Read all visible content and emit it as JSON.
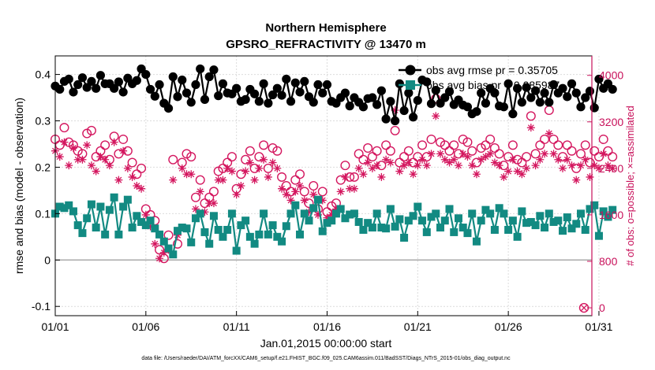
{
  "chart_data": {
    "type": "line",
    "title": "Northern Hemisphere",
    "subtitle": "GPSRO_REFRACTIVITY @ 13470 m",
    "xlabel": "Jan.01,2015 00:00:00 start",
    "ylabel": "rmse and bias (model - observation)",
    "ylabel_right": "# of obs: o=possible; ×=assimilated",
    "ylim": [
      -0.12,
      0.44
    ],
    "ylim_right": [
      -135,
      4335
    ],
    "xlim": [
      0,
      31.7
    ],
    "yticks": [
      "0.4",
      "0.3",
      "0.2",
      "0.1",
      "0",
      "-0.1"
    ],
    "yticks_values": [
      0.4,
      0.3,
      0.2,
      0.1,
      0,
      -0.1
    ],
    "yticks_right": [
      "4000",
      "3200",
      "2400",
      "1600",
      "800",
      "0"
    ],
    "yticks_right_values": [
      4000,
      3200,
      2400,
      1600,
      800,
      0
    ],
    "xticks": [
      "01/01",
      "01/06",
      "01/11",
      "01/16",
      "01/21",
      "01/26",
      "01/31"
    ],
    "xticks_values": [
      0,
      5,
      10,
      15,
      20,
      25,
      30
    ],
    "zero_line": 0,
    "legend_position": "top-right",
    "legend": [
      "obs avg rmse pr = 0.35705",
      "obs avg bias pr = 0.085987"
    ],
    "footnote": "data file: /Users/raeder/DAI/ATM_forcXX/CAM6_setup/f.e21.FHIST_BGC.f09_025.CAM6assim.011/BadSST/Diags_NTrS_2015-01/obs_diag_output.nc",
    "rmse_series": {
      "name": "obs avg rmse pr = 0.35705",
      "color": "#000000",
      "x": [
        0,
        0.25,
        0.5,
        0.75,
        1,
        1.25,
        1.5,
        1.75,
        2,
        2.25,
        2.5,
        2.75,
        3,
        3.25,
        3.5,
        3.75,
        4,
        4.25,
        4.5,
        4.75,
        5,
        5.25,
        5.5,
        5.75,
        6,
        6.25,
        6.5,
        6.75,
        7,
        7.25,
        7.5,
        7.75,
        8,
        8.25,
        8.5,
        8.75,
        9,
        9.25,
        9.5,
        9.75,
        10,
        10.25,
        10.5,
        10.75,
        11,
        11.25,
        11.5,
        11.75,
        12,
        12.25,
        12.5,
        12.75,
        13,
        13.25,
        13.5,
        13.75,
        14,
        14.25,
        14.5,
        14.75,
        15,
        15.25,
        15.5,
        15.75,
        16,
        16.25,
        16.5,
        16.75,
        17,
        17.25,
        17.5,
        17.75,
        18,
        18.25,
        18.5,
        18.75,
        19,
        19.25,
        19.5,
        19.75,
        20,
        20.25,
        20.5,
        20.75,
        21,
        21.25,
        21.5,
        21.75,
        22,
        22.25,
        22.5,
        22.75,
        23,
        23.25,
        23.5,
        23.75,
        24,
        24.25,
        24.5,
        24.75,
        25,
        25.25,
        25.5,
        25.75,
        26,
        26.25,
        26.5,
        26.75,
        27,
        27.25,
        27.5,
        27.75,
        28,
        28.25,
        28.5,
        28.75,
        29,
        29.25,
        29.5,
        29.75,
        30,
        30.25,
        30.5,
        30.75
      ],
      "values": [
        0.375,
        0.368,
        0.385,
        0.39,
        0.362,
        0.378,
        0.393,
        0.372,
        0.385,
        0.37,
        0.398,
        0.38,
        0.38,
        0.37,
        0.384,
        0.362,
        0.392,
        0.38,
        0.387,
        0.412,
        0.4,
        0.368,
        0.353,
        0.378,
        0.338,
        0.327,
        0.395,
        0.352,
        0.388,
        0.36,
        0.34,
        0.378,
        0.412,
        0.346,
        0.395,
        0.41,
        0.354,
        0.38,
        0.36,
        0.358,
        0.37,
        0.342,
        0.346,
        0.368,
        0.358,
        0.342,
        0.38,
        0.338,
        0.356,
        0.37,
        0.355,
        0.39,
        0.342,
        0.382,
        0.362,
        0.385,
        0.352,
        0.34,
        0.378,
        0.36,
        0.378,
        0.342,
        0.338,
        0.35,
        0.36,
        0.332,
        0.35,
        0.34,
        0.33,
        0.348,
        0.35,
        0.335,
        0.365,
        0.304,
        0.342,
        0.3,
        0.38,
        0.322,
        0.36,
        0.308,
        0.344,
        0.388,
        0.384,
        0.337,
        0.366,
        0.338,
        0.35,
        0.363,
        0.335,
        0.345,
        0.334,
        0.33,
        0.315,
        0.32,
        0.36,
        0.338,
        0.37,
        0.36,
        0.332,
        0.33,
        0.38,
        0.315,
        0.37,
        0.34,
        0.372,
        0.35,
        0.365,
        0.34,
        0.36,
        0.34,
        0.378,
        0.36,
        0.37,
        0.352,
        0.38,
        0.36,
        0.33,
        0.35,
        0.364,
        0.328,
        0.39,
        0.37,
        0.38,
        0.368
      ]
    },
    "bias_series": {
      "name": "obs avg bias pr = 0.085987",
      "color": "#128a82",
      "x": [
        0,
        0.25,
        0.5,
        0.75,
        1,
        1.25,
        1.5,
        1.75,
        2,
        2.25,
        2.5,
        2.75,
        3,
        3.25,
        3.5,
        3.75,
        4,
        4.25,
        4.5,
        4.75,
        5,
        5.25,
        5.5,
        5.75,
        6,
        6.25,
        6.5,
        6.75,
        7,
        7.25,
        7.5,
        7.75,
        8,
        8.25,
        8.5,
        8.75,
        9,
        9.25,
        9.5,
        9.75,
        10,
        10.25,
        10.5,
        10.75,
        11,
        11.25,
        11.5,
        11.75,
        12,
        12.25,
        12.5,
        12.75,
        13,
        13.25,
        13.5,
        13.75,
        14,
        14.25,
        14.5,
        14.75,
        15,
        15.25,
        15.5,
        15.75,
        16,
        16.25,
        16.5,
        16.75,
        17,
        17.25,
        17.5,
        17.75,
        18,
        18.25,
        18.5,
        18.75,
        19,
        19.25,
        19.5,
        19.75,
        20,
        20.25,
        20.5,
        20.75,
        21,
        21.25,
        21.5,
        21.75,
        22,
        22.25,
        22.5,
        22.75,
        23,
        23.25,
        23.5,
        23.75,
        24,
        24.25,
        24.5,
        24.75,
        25,
        25.25,
        25.5,
        25.75,
        26,
        26.25,
        26.5,
        26.75,
        27,
        27.25,
        27.5,
        27.75,
        28,
        28.25,
        28.5,
        28.75,
        29,
        29.25,
        29.5,
        29.75,
        30,
        30.25,
        30.5,
        30.75
      ],
      "values": [
        0.1,
        0.115,
        0.112,
        0.118,
        0.105,
        0.075,
        0.058,
        0.09,
        0.12,
        0.07,
        0.115,
        0.055,
        0.108,
        0.135,
        0.055,
        0.115,
        0.13,
        0.07,
        0.095,
        0.082,
        0.075,
        0.085,
        0.068,
        0.055,
        0.04,
        0.025,
        0.012,
        0.063,
        0.07,
        0.068,
        0.038,
        0.09,
        0.1,
        0.06,
        0.035,
        0.095,
        0.065,
        0.05,
        0.065,
        0.1,
        0.02,
        0.075,
        0.085,
        0.05,
        0.035,
        0.055,
        0.1,
        0.055,
        0.075,
        0.05,
        0.04,
        0.073,
        0.1,
        0.118,
        0.055,
        0.1,
        0.085,
        0.112,
        0.13,
        0.062,
        0.08,
        0.085,
        0.1,
        0.11,
        0.09,
        0.098,
        0.1,
        0.082,
        0.065,
        0.08,
        0.07,
        0.1,
        0.07,
        0.068,
        0.11,
        0.072,
        0.088,
        0.048,
        0.085,
        0.095,
        0.115,
        0.085,
        0.06,
        0.093,
        0.1,
        0.07,
        0.085,
        0.11,
        0.06,
        0.09,
        0.07,
        0.058,
        0.1,
        0.04,
        0.085,
        0.108,
        0.1,
        0.065,
        0.112,
        0.1,
        0.065,
        0.085,
        0.05,
        0.105,
        0.08,
        0.082,
        0.075,
        0.095,
        0.07,
        0.1,
        0.082,
        0.085,
        0.063,
        0.092,
        0.068,
        0.078,
        0.1,
        0.065,
        0.11,
        0.118,
        0.052,
        0.105,
        0.093,
        0.108
      ]
    },
    "possible_obs": {
      "name": "possible",
      "color": "#d4175f",
      "values": [
        2900,
        2800,
        3100,
        2850,
        2800,
        2700,
        2650,
        3000,
        3050,
        2600,
        2700,
        2800,
        2550,
        2950,
        2650,
        2900,
        2700,
        2500,
        2300,
        2400,
        1700,
        1600,
        1500,
        1000,
        850,
        1250,
        2550,
        1100,
        2500,
        2650,
        2600,
        1900,
        2200,
        1800,
        1900,
        2000,
        2350,
        2400,
        2500,
        2600,
        2050,
        2300,
        2550,
        2700,
        2400,
        2600,
        2800,
        2400,
        2750,
        2700,
        2250,
        2100,
        2000,
        2200,
        2300,
        2000,
        1800,
        2100,
        1700,
        2000,
        1650,
        1750,
        1800,
        2200,
        2450,
        2250,
        2250,
        2650,
        2550,
        2750,
        2600,
        2700,
        2450,
        2800,
        2700,
        3050,
        2500,
        2600,
        2700,
        2500,
        2600,
        2800,
        2600,
        2900,
        3600,
        2850,
        2800,
        2700,
        2800,
        2650,
        2900,
        2850,
        2700,
        2500,
        2750,
        2800,
        2900,
        2750,
        2650,
        2450,
        2600,
        2800,
        2550,
        2500,
        2600,
        3300,
        2650,
        2800,
        2900,
        3400,
        2900,
        2800,
        2600,
        2800,
        2700,
        2400,
        2650,
        2800,
        2500,
        2700,
        2600,
        2900,
        2700,
        2600
      ]
    },
    "assimilated_obs": {
      "name": "assimilated",
      "color": "#d4175f",
      "values": [
        2700,
        2600,
        2850,
        2450,
        2750,
        2550,
        2550,
        2800,
        2450,
        2350,
        2600,
        2550,
        2450,
        2850,
        2200,
        2700,
        2400,
        2250,
        2100,
        2050,
        1600,
        1400,
        1100,
        850,
        950,
        1000,
        2200,
        1250,
        2400,
        2300,
        2300,
        1700,
        2000,
        1650,
        1800,
        1800,
        2200,
        2200,
        2400,
        2350,
        1950,
        2100,
        2350,
        2500,
        2200,
        2400,
        2550,
        2250,
        2500,
        2400,
        2050,
        1950,
        1850,
        2000,
        2100,
        1850,
        1650,
        1950,
        1600,
        1850,
        1550,
        1600,
        1700,
        2000,
        2250,
        2050,
        2050,
        2400,
        2300,
        2500,
        2400,
        2450,
        2250,
        2550,
        2500,
        3400,
        2350,
        2450,
        2500,
        2300,
        2450,
        2550,
        2450,
        2650,
        3300,
        2650,
        2550,
        2500,
        2550,
        2450,
        2650,
        2600,
        2450,
        2300,
        2550,
        2600,
        2650,
        2500,
        2450,
        2250,
        2350,
        2550,
        2350,
        2300,
        2400,
        3100,
        2450,
        2550,
        2650,
        3000,
        2650,
        2550,
        2400,
        2550,
        2450,
        2200,
        2450,
        2550,
        2250,
        2450,
        2400,
        2650,
        2450,
        2400
      ]
    }
  }
}
